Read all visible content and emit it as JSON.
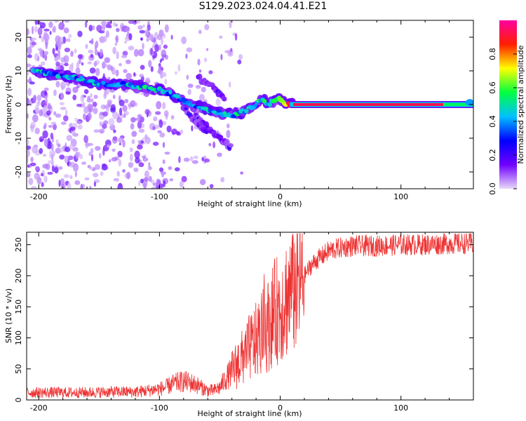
{
  "title": "S129.2023.024.04.41.E21",
  "chart_data": [
    {
      "type": "heatmap",
      "xlabel": "Height of straight line (km)",
      "ylabel": "Frequency (Hz)",
      "xlim": [
        -210,
        160
      ],
      "ylim": [
        -25,
        25
      ],
      "x_ticks": [
        -200,
        -100,
        0,
        100
      ],
      "y_ticks": [
        -20,
        -10,
        0,
        10,
        20
      ],
      "colorbar": {
        "label": "Normalized spectral amplitude",
        "range": [
          0,
          1
        ],
        "ticks": [
          "0.0",
          "0.2",
          "0.4",
          "0.6",
          "0.8"
        ],
        "colormap": "rainbow",
        "colors": [
          "#e8d8f8",
          "#7000ff",
          "#0000ff",
          "#00c0ff",
          "#00ff40",
          "#ffff00",
          "#ff2000",
          "#ff00a0"
        ]
      },
      "ridge": {
        "x": [
          -205,
          -190,
          -170,
          -150,
          -130,
          -110,
          -95,
          -85,
          -75,
          -65,
          -55,
          -45,
          -38,
          -30,
          -25,
          -20,
          -15,
          -10,
          -5,
          0,
          5,
          15,
          50,
          100,
          150,
          160
        ],
        "y": [
          10,
          9,
          8,
          6,
          6,
          5,
          4,
          2,
          0,
          -1,
          -2,
          -3,
          -3,
          -2,
          -1,
          0,
          2,
          0,
          1,
          2,
          0,
          0,
          0,
          0,
          0,
          1
        ],
        "amplitude": [
          0.55,
          0.45,
          0.45,
          0.5,
          0.45,
          0.55,
          0.45,
          0.45,
          0.4,
          0.45,
          0.5,
          0.55,
          0.5,
          0.55,
          0.6,
          0.55,
          0.65,
          0.55,
          0.6,
          0.6,
          0.85,
          0.95,
          0.95,
          0.95,
          0.95,
          0.7
        ]
      },
      "secondary_tracks": [
        {
          "x": [
            -70,
            -60,
            -50,
            -40
          ],
          "y": [
            -3,
            -7,
            -10,
            -13
          ]
        },
        {
          "x": [
            -80,
            -70,
            -60
          ],
          "y": [
            -1,
            -5,
            -8
          ]
        },
        {
          "x": [
            -68,
            -55,
            -45
          ],
          "y": [
            8,
            5,
            1
          ]
        }
      ]
    },
    {
      "type": "line",
      "xlabel": "Height of straight line (km)",
      "ylabel": "SNR (10 * v/v)",
      "xlim": [
        -210,
        160
      ],
      "ylim": [
        0,
        270
      ],
      "x_ticks": [
        -200,
        -100,
        0,
        100
      ],
      "y_ticks": [
        0,
        50,
        100,
        150,
        200,
        250
      ],
      "color": "#ee3333",
      "series": [
        {
          "x": [
            -210,
            -200,
            -180,
            -160,
            -140,
            -120,
            -110,
            -100,
            -95,
            -90,
            -85,
            -80,
            -75,
            -70,
            -65,
            -60,
            -55,
            -50,
            -45,
            -40,
            -35,
            -30,
            -25,
            -20,
            -15,
            -10,
            -5,
            0,
            5,
            10,
            15,
            20,
            25,
            30,
            35,
            40,
            50,
            60,
            80,
            100,
            120,
            140,
            160
          ],
          "y": [
            12,
            12,
            12,
            12,
            13,
            13,
            15,
            18,
            20,
            25,
            28,
            30,
            28,
            25,
            20,
            15,
            15,
            20,
            35,
            45,
            60,
            70,
            85,
            95,
            110,
            120,
            140,
            150,
            165,
            175,
            185,
            200,
            215,
            225,
            232,
            240,
            245,
            248,
            248,
            250,
            250,
            252,
            252
          ]
        }
      ]
    }
  ]
}
